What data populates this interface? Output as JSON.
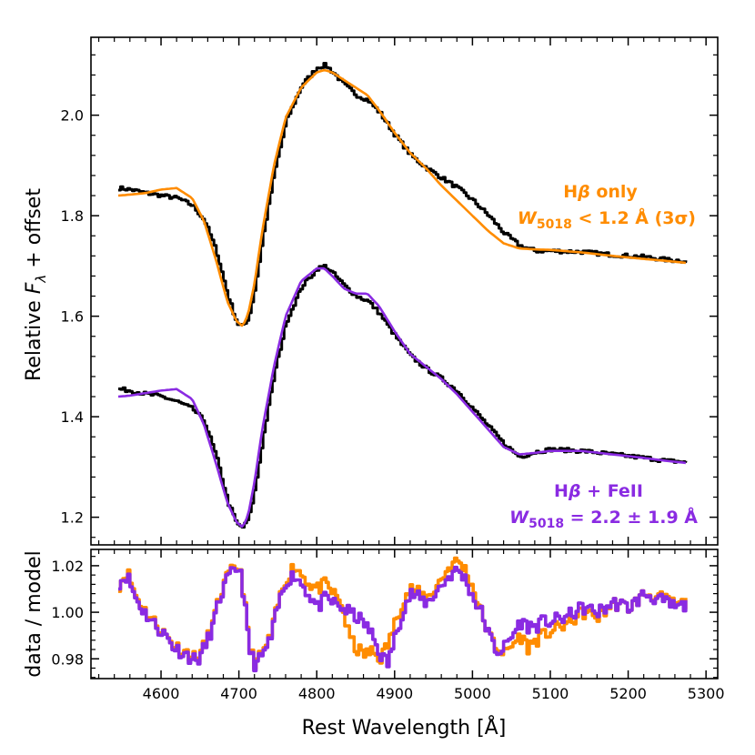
{
  "chart_data": [
    {
      "type": "line",
      "panel": "top",
      "ylabel_main": "Relative ",
      "ylabel_sym": "F",
      "ylabel_sub": "λ",
      "ylabel_tail": " + offset",
      "xlim": [
        4510,
        5315
      ],
      "ylim": [
        1.145,
        2.155
      ],
      "yticks": [
        1.2,
        1.4,
        1.6,
        1.8,
        2.0
      ],
      "ytick_labels": [
        "1.2",
        "1.4",
        "1.6",
        "1.8",
        "2.0"
      ],
      "colors": {
        "data": "#000000",
        "hbeta": "#ff8c00",
        "feii": "#8a2be2"
      },
      "series": [
        {
          "name": "data (upper)",
          "color": "#000000",
          "x": [
            4545,
            4560,
            4580,
            4600,
            4620,
            4640,
            4655,
            4670,
            4685,
            4697,
            4705,
            4712,
            4720,
            4730,
            4745,
            4760,
            4780,
            4800,
            4810,
            4820,
            4835,
            4850,
            4865,
            4880,
            4900,
            4920,
            4940,
            4960,
            4980,
            5000,
            5020,
            5040,
            5060,
            5080,
            5100,
            5140,
            5180,
            5220,
            5250,
            5275
          ],
          "y": [
            1.855,
            1.852,
            1.845,
            1.84,
            1.835,
            1.82,
            1.79,
            1.73,
            1.64,
            1.585,
            1.58,
            1.6,
            1.66,
            1.76,
            1.89,
            1.99,
            2.06,
            2.095,
            2.1,
            2.085,
            2.06,
            2.04,
            2.03,
            2.005,
            1.96,
            1.92,
            1.895,
            1.875,
            1.855,
            1.83,
            1.8,
            1.765,
            1.74,
            1.73,
            1.73,
            1.728,
            1.722,
            1.718,
            1.712,
            1.71
          ]
        },
        {
          "name": "Hβ only",
          "color": "#ff8c00",
          "x": [
            4545,
            4560,
            4580,
            4600,
            4620,
            4640,
            4655,
            4670,
            4685,
            4697,
            4705,
            4712,
            4720,
            4730,
            4745,
            4760,
            4780,
            4800,
            4810,
            4820,
            4835,
            4850,
            4865,
            4880,
            4900,
            4920,
            4940,
            4960,
            4980,
            5000,
            5020,
            5040,
            5060,
            5080,
            5100,
            5140,
            5180,
            5220,
            5250,
            5275
          ],
          "y": [
            1.84,
            1.842,
            1.845,
            1.852,
            1.855,
            1.835,
            1.79,
            1.715,
            1.63,
            1.59,
            1.58,
            1.605,
            1.665,
            1.77,
            1.9,
            1.995,
            2.055,
            2.085,
            2.09,
            2.085,
            2.07,
            2.055,
            2.04,
            2.01,
            1.965,
            1.925,
            1.895,
            1.86,
            1.83,
            1.8,
            1.77,
            1.745,
            1.735,
            1.733,
            1.732,
            1.727,
            1.72,
            1.714,
            1.71,
            1.706
          ]
        },
        {
          "name": "data (lower)",
          "color": "#000000",
          "x": [
            4545,
            4560,
            4580,
            4600,
            4620,
            4640,
            4655,
            4670,
            4685,
            4697,
            4705,
            4712,
            4720,
            4730,
            4745,
            4760,
            4780,
            4800,
            4810,
            4820,
            4835,
            4850,
            4865,
            4880,
            4900,
            4920,
            4940,
            4960,
            4980,
            5000,
            5020,
            5040,
            5060,
            5080,
            5100,
            5140,
            5180,
            5220,
            5250,
            5275
          ],
          "y": [
            1.455,
            1.452,
            1.445,
            1.44,
            1.43,
            1.415,
            1.39,
            1.32,
            1.23,
            1.185,
            1.18,
            1.2,
            1.26,
            1.36,
            1.49,
            1.59,
            1.66,
            1.695,
            1.7,
            1.685,
            1.66,
            1.64,
            1.63,
            1.605,
            1.56,
            1.52,
            1.495,
            1.475,
            1.45,
            1.415,
            1.38,
            1.345,
            1.32,
            1.33,
            1.335,
            1.332,
            1.325,
            1.318,
            1.312,
            1.31
          ]
        },
        {
          "name": "Hβ + FeII",
          "color": "#8a2be2",
          "x": [
            4545,
            4560,
            4580,
            4600,
            4620,
            4640,
            4655,
            4670,
            4685,
            4697,
            4705,
            4712,
            4720,
            4730,
            4745,
            4760,
            4780,
            4800,
            4810,
            4820,
            4835,
            4850,
            4865,
            4880,
            4900,
            4920,
            4940,
            4960,
            4980,
            5000,
            5020,
            5040,
            5060,
            5080,
            5100,
            5140,
            5180,
            5220,
            5250,
            5275
          ],
          "y": [
            1.44,
            1.442,
            1.447,
            1.452,
            1.455,
            1.435,
            1.385,
            1.31,
            1.23,
            1.19,
            1.18,
            1.205,
            1.27,
            1.375,
            1.5,
            1.6,
            1.67,
            1.695,
            1.695,
            1.68,
            1.655,
            1.645,
            1.645,
            1.62,
            1.57,
            1.525,
            1.5,
            1.475,
            1.445,
            1.41,
            1.375,
            1.34,
            1.325,
            1.328,
            1.332,
            1.332,
            1.325,
            1.318,
            1.312,
            1.308
          ]
        }
      ],
      "annotations": [
        {
          "id": "orange-title",
          "prefix": "H",
          "greek": "β",
          "suffix": " only",
          "color": "#ff8c00"
        },
        {
          "id": "orange-eq",
          "sym": "W",
          "sub": "5018",
          "text": " < 1.2 Å (3σ)",
          "color": "#ff8c00"
        },
        {
          "id": "purple-title",
          "prefix": "H",
          "greek": "β",
          "suffix": " + FeII",
          "color": "#8a2be2"
        },
        {
          "id": "purple-eq",
          "sym": "W",
          "sub": "5018",
          "text": " = 2.2 ± 1.9 Å",
          "color": "#8a2be2"
        }
      ]
    },
    {
      "type": "line",
      "panel": "bottom",
      "ylabel": "data / model",
      "xlabel": "Rest Wavelength [Å]",
      "xlim": [
        4510,
        5315
      ],
      "ylim": [
        0.9715,
        1.027
      ],
      "xticks": [
        4600,
        4700,
        4800,
        4900,
        5000,
        5100,
        5200,
        5300
      ],
      "xtick_labels": [
        "4600",
        "4700",
        "4800",
        "4900",
        "5000",
        "5100",
        "5200",
        "5300"
      ],
      "yticks": [
        0.98,
        1.0,
        1.02
      ],
      "ytick_labels": [
        "0.98",
        "1.00",
        "1.02"
      ],
      "series": [
        {
          "name": "residual Hβ only",
          "color": "#ff8c00",
          "x": [
            4545,
            4555,
            4565,
            4575,
            4585,
            4595,
            4605,
            4615,
            4625,
            4635,
            4645,
            4655,
            4665,
            4675,
            4685,
            4695,
            4700,
            4705,
            4712,
            4720,
            4730,
            4740,
            4750,
            4760,
            4770,
            4780,
            4790,
            4800,
            4810,
            4820,
            4830,
            4840,
            4850,
            4860,
            4870,
            4880,
            4890,
            4900,
            4910,
            4920,
            4930,
            4940,
            4950,
            4960,
            4970,
            4980,
            4990,
            5000,
            5010,
            5020,
            5030,
            5040,
            5050,
            5060,
            5070,
            5080,
            5090,
            5100,
            5120,
            5140,
            5160,
            5180,
            5200,
            5220,
            5240,
            5260,
            5275
          ],
          "y": [
            1.012,
            1.018,
            1.008,
            1.002,
            0.998,
            0.994,
            0.99,
            0.986,
            0.984,
            0.982,
            0.98,
            0.986,
            0.995,
            1.008,
            1.016,
            1.019,
            1.02,
            1.008,
            0.985,
            0.978,
            0.983,
            0.99,
            1.005,
            1.015,
            1.02,
            1.016,
            1.012,
            1.01,
            1.012,
            1.008,
            1.004,
            0.99,
            0.984,
            0.982,
            0.983,
            0.98,
            0.986,
            0.996,
            1.006,
            1.01,
            1.008,
            1.006,
            1.01,
            1.015,
            1.02,
            1.022,
            1.018,
            1.01,
            1.0,
            0.99,
            0.985,
            0.982,
            0.986,
            0.99,
            0.985,
            0.988,
            0.99,
            0.992,
            0.995,
            1.0,
            0.998,
            1.004,
            1.002,
            1.008,
            1.006,
            1.003,
            1.004
          ]
        },
        {
          "name": "residual Hβ + FeII",
          "color": "#8a2be2",
          "x": [
            4545,
            4555,
            4565,
            4575,
            4585,
            4595,
            4605,
            4615,
            4625,
            4635,
            4645,
            4655,
            4665,
            4675,
            4685,
            4695,
            4700,
            4705,
            4712,
            4720,
            4730,
            4740,
            4750,
            4760,
            4770,
            4780,
            4790,
            4800,
            4810,
            4820,
            4830,
            4840,
            4850,
            4860,
            4870,
            4880,
            4890,
            4900,
            4910,
            4920,
            4930,
            4940,
            4950,
            4960,
            4970,
            4980,
            4990,
            5000,
            5010,
            5020,
            5030,
            5040,
            5050,
            5060,
            5070,
            5080,
            5090,
            5100,
            5120,
            5140,
            5160,
            5180,
            5200,
            5220,
            5240,
            5260,
            5275
          ],
          "y": [
            1.013,
            1.016,
            1.007,
            1.001,
            0.997,
            0.993,
            0.99,
            0.985,
            0.983,
            0.981,
            0.979,
            0.985,
            0.994,
            1.007,
            1.015,
            1.018,
            1.02,
            1.007,
            0.984,
            0.977,
            0.982,
            0.989,
            1.004,
            1.014,
            1.016,
            1.012,
            1.007,
            1.002,
            1.006,
            1.004,
            1.002,
            1.0,
            0.998,
            0.995,
            0.99,
            0.982,
            0.978,
            0.99,
            1.002,
            1.008,
            1.006,
            1.004,
            1.008,
            1.012,
            1.016,
            1.018,
            1.014,
            1.006,
            1.0,
            0.99,
            0.983,
            0.985,
            0.99,
            0.996,
            0.994,
            0.994,
            0.996,
            0.996,
            0.998,
            1.002,
            1.0,
            1.004,
            1.002,
            1.008,
            1.005,
            1.002,
            1.003
          ]
        }
      ]
    }
  ]
}
